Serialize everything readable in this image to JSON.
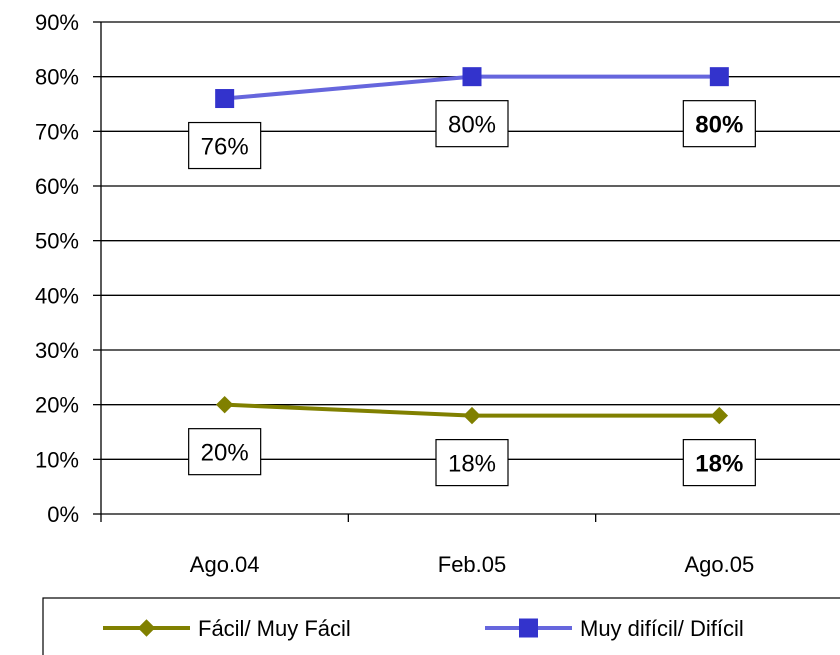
{
  "chart_data": {
    "type": "line",
    "categories": [
      "Ago.04",
      "Feb.05",
      "Ago.05"
    ],
    "ylim": [
      0,
      90
    ],
    "yticks": [
      "0%",
      "10%",
      "20%",
      "30%",
      "40%",
      "50%",
      "60%",
      "70%",
      "80%",
      "90%"
    ],
    "grid": true,
    "legend_position": "bottom",
    "series": [
      {
        "name": "Fácil/ Muy Fácil",
        "values": [
          20,
          18,
          18
        ],
        "labels": [
          "20%",
          "18%",
          "18%"
        ],
        "bold": [
          false,
          false,
          true
        ],
        "color": "#808000",
        "marker": "diamond"
      },
      {
        "name": "Muy difícil/ Difícil",
        "values": [
          76,
          80,
          80
        ],
        "labels": [
          "76%",
          "80%",
          "80%"
        ],
        "bold": [
          false,
          false,
          true
        ],
        "color": "#6666dd",
        "marker_color": "#3333cc",
        "marker": "square"
      }
    ]
  }
}
